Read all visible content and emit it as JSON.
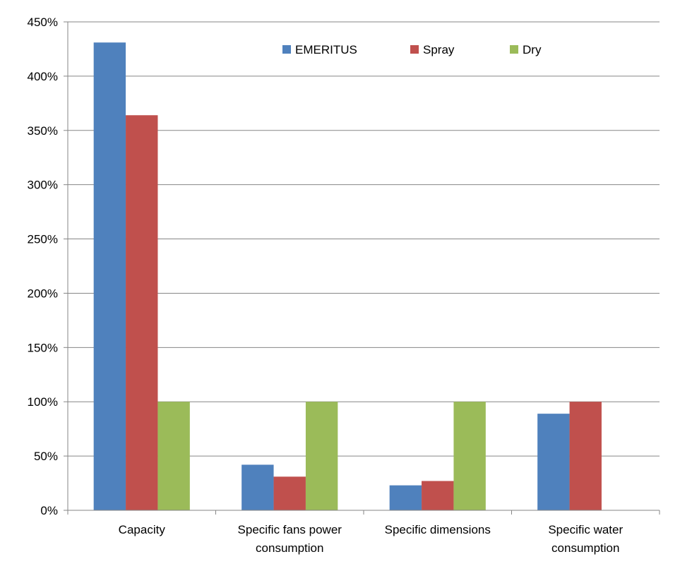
{
  "chart_data": {
    "type": "bar",
    "categories": [
      [
        "Capacity"
      ],
      [
        "Specific fans power",
        "consumption"
      ],
      [
        "Specific dimensions"
      ],
      [
        "Specific water",
        "consumption"
      ]
    ],
    "series": [
      {
        "name": "EMERITUS",
        "color": "#4F81BD",
        "values": [
          431,
          42,
          23,
          89
        ]
      },
      {
        "name": "Spray",
        "color": "#C0504D",
        "values": [
          364,
          31,
          27,
          100
        ]
      },
      {
        "name": "Dry",
        "color": "#9BBB59",
        "values": [
          100,
          100,
          100,
          0
        ]
      }
    ],
    "y_ticks": [
      "0%",
      "50%",
      "100%",
      "150%",
      "200%",
      "250%",
      "300%",
      "350%",
      "400%",
      "450%"
    ],
    "ylim": [
      0,
      450
    ],
    "y_unit": "%",
    "grid": true,
    "legend_position": "top-center"
  }
}
